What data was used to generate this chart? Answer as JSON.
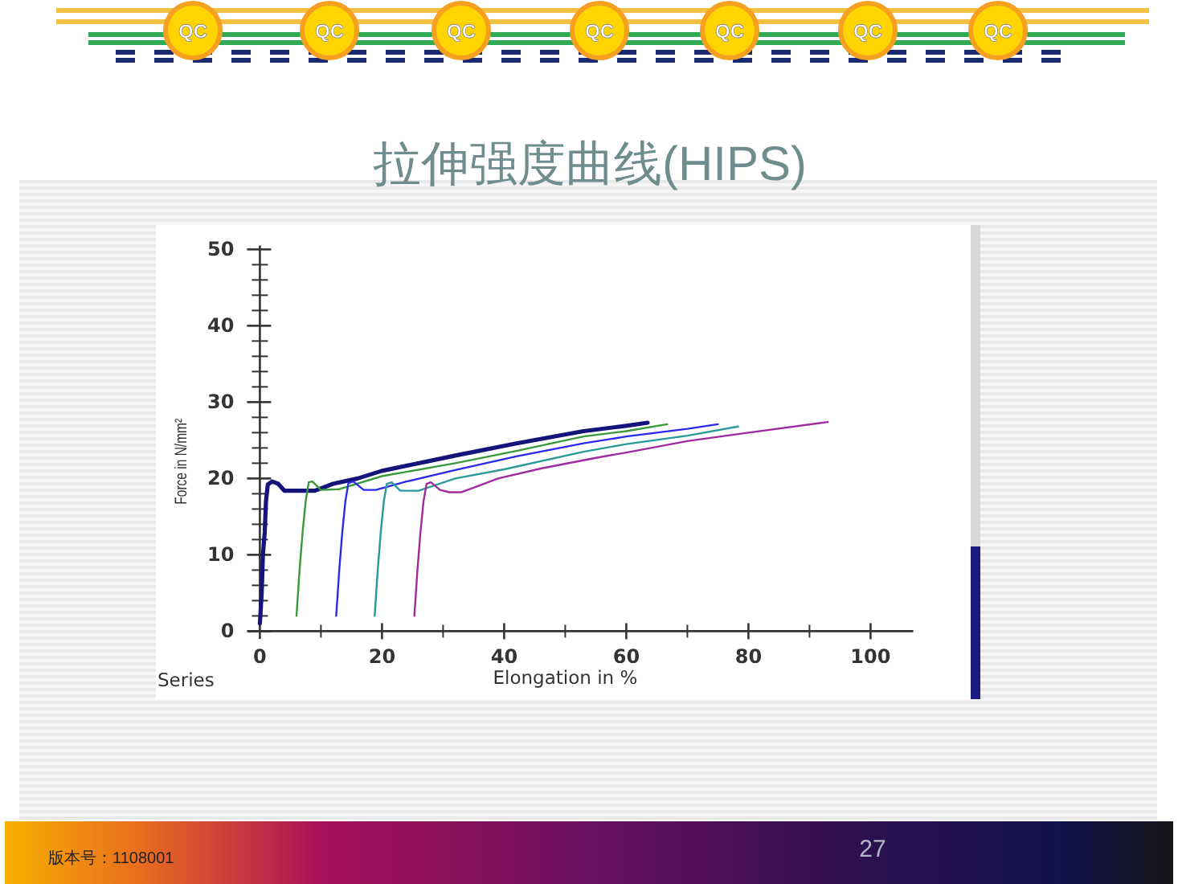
{
  "chart_data": {
    "type": "line",
    "title": "拉伸强度曲线(HIPS)",
    "xlabel": "Elongation in %",
    "ylabel": "Force in N/mm²",
    "annotations": [
      "Series",
      "版本号：1108001",
      "27",
      "QC"
    ],
    "line_style": "solid",
    "xlim": [
      -2,
      107
    ],
    "ylim": [
      -1,
      50.5
    ],
    "xticks": [
      0,
      {
        "value": 10,
        "label": null
      },
      20,
      {
        "value": 30,
        "label": null
      },
      40,
      {
        "value": 50,
        "label": null
      },
      60,
      {
        "value": 70,
        "label": null
      },
      80,
      {
        "value": 90,
        "label": null
      },
      100
    ],
    "yticks": [
      0,
      {
        "value": 2,
        "label": null
      },
      {
        "value": 4,
        "label": null
      },
      {
        "value": 6,
        "label": null
      },
      {
        "value": 8,
        "label": null
      },
      10,
      {
        "value": 12,
        "label": null
      },
      {
        "value": 14,
        "label": null
      },
      {
        "value": 16,
        "label": null
      },
      {
        "value": 18,
        "label": null
      },
      20,
      {
        "value": 22,
        "label": null
      },
      {
        "value": 24,
        "label": null
      },
      {
        "value": 26,
        "label": null
      },
      {
        "value": 28,
        "label": null
      },
      30,
      {
        "value": 32,
        "label": null
      },
      {
        "value": 34,
        "label": null
      },
      {
        "value": 36,
        "label": null
      },
      {
        "value": 38,
        "label": null
      },
      40,
      {
        "value": 42,
        "label": null
      },
      {
        "value": 44,
        "label": null
      },
      {
        "value": 46,
        "label": null
      },
      {
        "value": 48,
        "label": null
      },
      50
    ],
    "series": [
      {
        "color": "#14147a",
        "x": [
          0,
          0.3,
          0.5,
          0.8,
          1,
          1.3,
          2,
          3,
          4,
          9,
          12,
          16,
          20,
          32,
          42,
          53,
          60,
          63.5
        ],
        "values": [
          1,
          5,
          10,
          13,
          17,
          19.2,
          19.6,
          19.3,
          18.4,
          18.4,
          19.3,
          20,
          21,
          23,
          24.6,
          26.2,
          26.9,
          27.3
        ]
      },
      {
        "color": "#3a9a3a",
        "x": [
          6,
          6.5,
          7,
          7.5,
          8,
          8.6,
          10,
          13,
          20,
          32,
          42,
          53,
          60,
          66.7
        ],
        "values": [
          2,
          8,
          13,
          17,
          19.5,
          19.6,
          18.5,
          18.6,
          20.3,
          22,
          23.6,
          25.5,
          26.2,
          27.1
        ]
      },
      {
        "color": "#2a2aee",
        "x": [
          12.5,
          13,
          13.5,
          14,
          14.5,
          15.3,
          17,
          19,
          24,
          32,
          42,
          53,
          60,
          70,
          75
        ],
        "values": [
          2,
          8,
          13,
          17,
          19.4,
          19.6,
          18.5,
          18.5,
          19.6,
          21.1,
          22.9,
          24.6,
          25.5,
          26.5,
          27.1
        ]
      },
      {
        "color": "#2a9a9a",
        "x": [
          18.8,
          19.3,
          19.8,
          20.3,
          20.8,
          21.6,
          23,
          26,
          32,
          40,
          53,
          60,
          70,
          78.3
        ],
        "values": [
          2,
          8,
          13,
          17,
          19.3,
          19.5,
          18.4,
          18.4,
          20,
          21.2,
          23.5,
          24.5,
          25.6,
          26.8
        ]
      },
      {
        "color": "#a02aa0",
        "x": [
          25.3,
          25.8,
          26.3,
          26.8,
          27.3,
          28,
          29.5,
          31,
          33,
          35,
          39,
          46,
          55,
          60,
          70,
          80,
          93
        ],
        "values": [
          2,
          8,
          13,
          17,
          19.3,
          19.5,
          18.5,
          18.2,
          18.2,
          18.8,
          20,
          21.3,
          22.7,
          23.4,
          24.9,
          26,
          27.4
        ]
      }
    ]
  }
}
